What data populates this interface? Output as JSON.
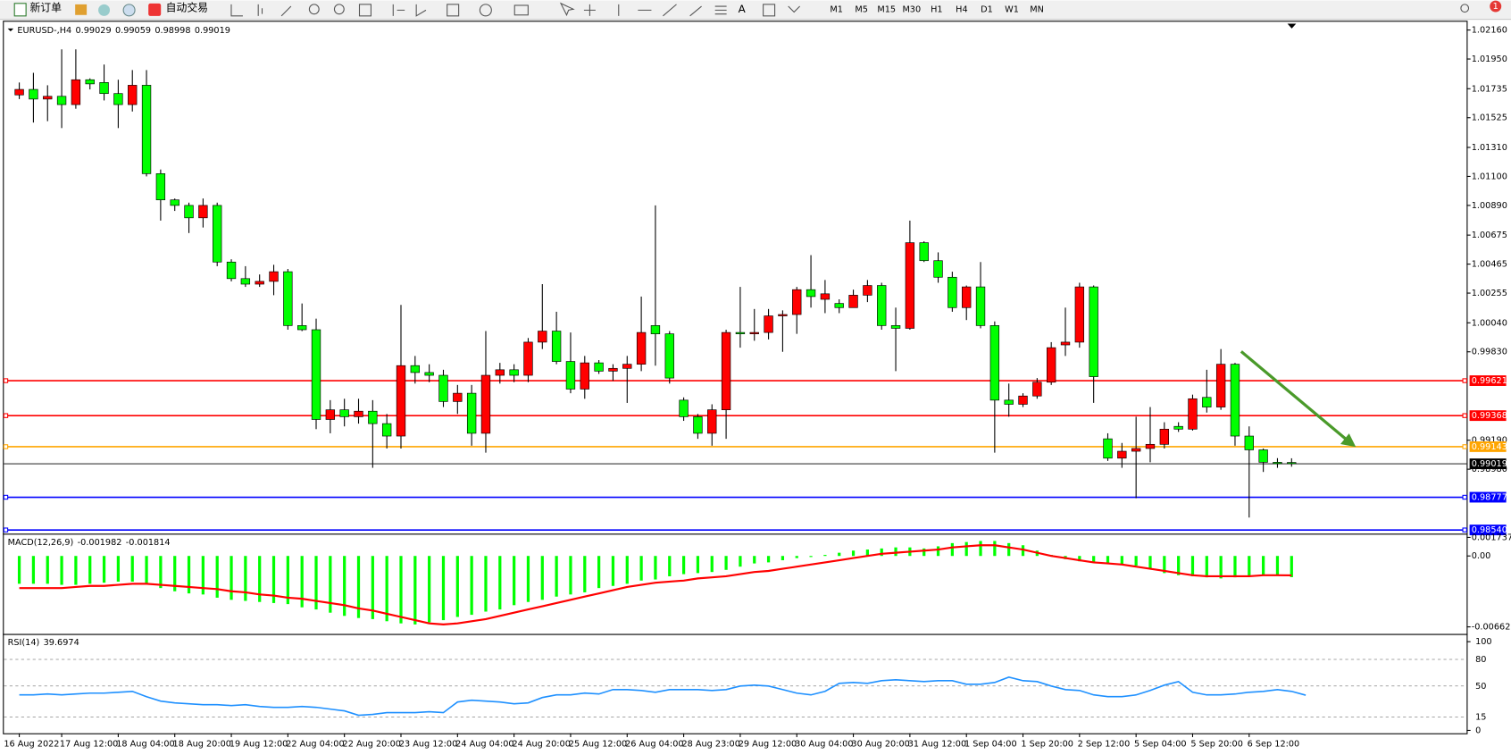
{
  "toolbar": {
    "new_order": "新订单",
    "auto_trading": "自动交易",
    "timeframes": [
      "M1",
      "M5",
      "M15",
      "M30",
      "H1",
      "H4",
      "D1",
      "W1",
      "MN"
    ],
    "notifications": "1"
  },
  "chart_data": [
    {
      "type": "candlestick",
      "title": "EURUSD-,H4",
      "categories": [
        "16 Aug 2022",
        null,
        null,
        "17 Aug 12:00",
        null,
        null,
        null,
        "18 Aug 04:00",
        null,
        null,
        null,
        "18 Aug 20:00",
        null,
        null,
        null,
        "19 Aug 12:00",
        null,
        null,
        null,
        "22 Aug 04:00",
        null,
        null,
        null,
        "22 Aug 20:00",
        null,
        null,
        null,
        "23 Aug 12:00",
        null,
        null,
        null,
        "24 Aug 04:00",
        null,
        null,
        null,
        "24 Aug 20:00",
        null,
        null,
        null,
        "25 Aug 12:00",
        null,
        null,
        null,
        "26 Aug 04:00",
        null,
        null,
        null,
        "28 Aug 23:00",
        null,
        null,
        null,
        "29 Aug 12:00",
        null,
        null,
        null,
        "30 Aug 04:00",
        null,
        null,
        null,
        "30 Aug 20:00",
        null,
        null,
        null,
        "31 Aug 12:00",
        null,
        null,
        null,
        "1 Sep 04:00",
        null,
        null,
        null,
        "1 Sep 20:00",
        null,
        null,
        null,
        "2 Sep 12:00",
        null,
        null,
        null,
        "5 Sep 04:00",
        null,
        null,
        null,
        "5 Sep 20:00",
        null,
        null,
        null,
        "6 Sep 12:00",
        null,
        null,
        null
      ],
      "open": [
        1.0169,
        1.0173,
        1.0166,
        1.0168,
        1.0162,
        1.018,
        1.0178,
        1.017,
        1.0162,
        1.0176,
        1.0112,
        1.0093,
        1.0089,
        1.008,
        1.0089,
        1.0048,
        1.0036,
        1.0032,
        1.0034,
        1.0041,
        1.0002,
        0.9999,
        0.9934,
        0.9941,
        0.9936,
        0.994,
        0.9931,
        0.9922,
        0.9973,
        0.9968,
        0.9966,
        0.9947,
        0.9953,
        0.9924,
        0.9966,
        0.997,
        0.9966,
        0.999,
        0.9998,
        0.9976,
        0.9956,
        0.9975,
        0.9969,
        0.9971,
        0.9974,
        1.0002,
        0.9996,
        0.9948,
        0.9936,
        0.9924,
        0.9941,
        0.9997,
        0.9996,
        0.9997,
        1.0009,
        1.001,
        1.0028,
        1.0021,
        1.0018,
        1.0015,
        1.0024,
        1.0031,
        1.0002,
        1.0,
        1.0062,
        1.0049,
        1.0037,
        1.0015,
        1.003,
        1.0002,
        0.9948,
        0.9945,
        0.9951,
        0.9961,
        0.9988,
        0.999,
        1.003,
        0.992,
        0.9906,
        0.9911,
        0.9913,
        0.9916,
        0.9929,
        0.9927,
        0.995,
        0.9943,
        0.9974,
        0.9922,
        0.9912,
        0.9903,
        0.99029
      ],
      "high": [
        1.0178,
        1.0185,
        1.0176,
        1.0202,
        1.0202,
        1.0181,
        1.0191,
        1.018,
        1.0187,
        1.0187,
        1.0115,
        1.0094,
        1.0091,
        1.0094,
        1.0091,
        1.005,
        1.0045,
        1.0039,
        1.0046,
        1.0043,
        1.0018,
        1.0007,
        0.9948,
        0.9949,
        0.9949,
        0.9948,
        0.9938,
        1.0017,
        0.998,
        0.9974,
        0.997,
        0.9959,
        0.9959,
        0.9998,
        0.9975,
        0.9974,
        0.9993,
        1.0032,
        1.0012,
        0.9997,
        0.998,
        0.9977,
        0.9974,
        0.998,
        1.0023,
        1.0089,
        0.9998,
        0.995,
        0.9938,
        0.9945,
        0.9999,
        1.003,
        1.0014,
        1.0014,
        1.0013,
        1.003,
        1.0053,
        1.0035,
        1.0021,
        1.0028,
        1.0035,
        1.0033,
        1.0015,
        1.0078,
        1.0063,
        1.0055,
        1.0041,
        1.0031,
        1.0048,
        1.0005,
        0.996,
        0.9953,
        0.9964,
        0.999,
        1.0015,
        1.0033,
        1.0031,
        0.9924,
        0.9917,
        0.9936,
        0.9943,
        0.9932,
        0.9932,
        0.9952,
        0.997,
        0.9985,
        0.9975,
        0.9929,
        0.9913,
        0.9906,
        0.99059
      ],
      "low": [
        1.0166,
        1.0149,
        1.015,
        1.0145,
        1.0159,
        1.0173,
        1.0165,
        1.0145,
        1.0157,
        1.011,
        1.0078,
        1.0085,
        1.0069,
        1.0073,
        1.0045,
        1.0034,
        1.003,
        1.003,
        1.0024,
        0.9999,
        0.9998,
        0.9927,
        0.9924,
        0.9929,
        0.9931,
        0.9899,
        0.9913,
        0.9913,
        0.996,
        0.9961,
        0.9943,
        0.9938,
        0.9915,
        0.991,
        0.996,
        0.9961,
        0.9961,
        0.9985,
        0.9974,
        0.9953,
        0.9949,
        0.9967,
        0.9962,
        0.9946,
        0.9969,
        0.9973,
        0.996,
        0.9933,
        0.992,
        0.9915,
        0.992,
        0.9986,
        0.9991,
        0.9992,
        0.9983,
        0.9996,
        1.0015,
        1.0011,
        1.0011,
        1.0018,
        1.0019,
        0.9999,
        0.9969,
        0.9999,
        1.0048,
        1.0033,
        1.0012,
        1.0006,
        1.0,
        0.991,
        0.9936,
        0.9943,
        0.9949,
        0.9959,
        0.998,
        0.9986,
        0.9946,
        0.9904,
        0.9899,
        0.9877,
        0.9903,
        0.9913,
        0.9925,
        0.9926,
        0.9939,
        0.9941,
        0.9915,
        0.9863,
        0.9896,
        0.9899,
        0.98998
      ],
      "close": [
        1.0173,
        1.0166,
        1.0168,
        1.0162,
        1.018,
        1.0177,
        1.017,
        1.0162,
        1.0176,
        1.0112,
        1.0093,
        1.0089,
        1.008,
        1.0089,
        1.0048,
        1.0036,
        1.0032,
        1.0034,
        1.0041,
        1.0002,
        0.9999,
        0.9934,
        0.9941,
        0.9936,
        0.994,
        0.9931,
        0.9922,
        0.9973,
        0.9968,
        0.9966,
        0.9947,
        0.9953,
        0.9924,
        0.9966,
        0.997,
        0.9966,
        0.999,
        0.9998,
        0.9976,
        0.9956,
        0.9975,
        0.9969,
        0.9971,
        0.9974,
        0.9997,
        0.9996,
        0.9964,
        0.9936,
        0.9924,
        0.9941,
        0.9997,
        0.9996,
        0.9997,
        1.0009,
        1.001,
        1.0028,
        1.0023,
        1.0025,
        1.0015,
        1.0024,
        1.0031,
        1.0002,
        1.0,
        1.0062,
        1.0049,
        1.0037,
        1.0015,
        1.003,
        1.0002,
        0.9948,
        0.9945,
        0.9951,
        0.9961,
        0.9986,
        0.999,
        1.003,
        0.9965,
        0.9906,
        0.9911,
        0.9913,
        0.9916,
        0.9927,
        0.9927,
        0.9949,
        0.9943,
        0.9974,
        0.9922,
        0.9912,
        0.9903,
        0.9902,
        0.99019
      ],
      "up_color": "#ff0000",
      "down_color": "#00ff00",
      "ylim": [
        0.9852,
        1.0222
      ],
      "yticks": [
        {
          "value": 1.0216,
          "label": "1.02160"
        },
        {
          "value": 1.0195,
          "label": "1.01950"
        },
        1.01735,
        1.01525,
        {
          "value": 1.0131,
          "label": "1.01310"
        },
        {
          "value": 1.011,
          "label": "1.01100"
        },
        {
          "value": 1.0089,
          "label": "1.00890"
        },
        1.00675,
        1.00465,
        1.00255,
        {
          "value": 1.0004,
          "label": "1.00040"
        },
        {
          "value": 0.9983,
          "label": "0.99830"
        },
        {
          "value": 0.9919,
          "label": "0.99190"
        },
        {
          "value": 0.9898,
          "label": "0.98980"
        }
      ],
      "levels": [
        {
          "value": 0.99621,
          "color": "#ff0000"
        },
        {
          "value": 0.99368,
          "color": "#ff0000"
        },
        {
          "value": 0.99143,
          "color": "#ffa500"
        },
        {
          "value": 0.98777,
          "color": "#0000ff"
        },
        {
          "value": 0.9854,
          "label": "0.98540",
          "color": "#0000ff"
        }
      ]
    },
    {
      "type": "macd",
      "title": "MACD(12,26,9)",
      "histogram": [
        -0.0026,
        -0.0026,
        -0.0026,
        -0.0027,
        -0.0027,
        -0.0026,
        -0.0025,
        -0.0024,
        -0.0024,
        -0.0026,
        -0.003,
        -0.0033,
        -0.0035,
        -0.0036,
        -0.0039,
        -0.0041,
        -0.0042,
        -0.0043,
        -0.0044,
        -0.0045,
        -0.0048,
        -0.005,
        -0.0053,
        -0.0056,
        -0.0058,
        -0.0059,
        -0.0061,
        -0.0063,
        -0.0064,
        -0.0062,
        -0.006,
        -0.0057,
        -0.0055,
        -0.0052,
        -0.005,
        -0.0046,
        -0.0043,
        -0.0041,
        -0.0038,
        -0.0036,
        -0.0034,
        -0.003,
        -0.0028,
        -0.0026,
        -0.0023,
        -0.0022,
        -0.0019,
        -0.0017,
        -0.0016,
        -0.0015,
        -0.0013,
        -0.001,
        -0.0007,
        -0.0006,
        -0.0004,
        -0.0002,
        -0.0001,
        0.0001,
        0.0003,
        0.0005,
        0.0006,
        0.0007,
        0.0008,
        0.0008,
        0.0007,
        0.0009,
        0.0012,
        0.0013,
        0.0014,
        0.0014,
        0.0012,
        0.001,
        0.0005,
        0.0001,
        -0.0003,
        -0.0005,
        -0.0006,
        -0.0007,
        -0.0008,
        -0.0009,
        -0.0012,
        -0.0016,
        -0.0018,
        -0.0019,
        -0.002,
        -0.0021,
        -0.002,
        -0.0019,
        -0.0018,
        -0.0018,
        -0.001982
      ],
      "histogram_color": "#00ff00",
      "signal": [
        -0.003,
        -0.003,
        -0.003,
        -0.003,
        -0.0029,
        -0.0028,
        -0.0028,
        -0.0027,
        -0.0026,
        -0.0026,
        -0.0027,
        -0.0028,
        -0.0029,
        -0.003,
        -0.0031,
        -0.0033,
        -0.0034,
        -0.0036,
        -0.0037,
        -0.0039,
        -0.004,
        -0.0042,
        -0.0044,
        -0.0046,
        -0.0049,
        -0.0051,
        -0.0054,
        -0.0057,
        -0.006,
        -0.0063,
        -0.0064,
        -0.0063,
        -0.0061,
        -0.0059,
        -0.0056,
        -0.0053,
        -0.005,
        -0.0047,
        -0.0044,
        -0.0041,
        -0.0038,
        -0.0035,
        -0.0032,
        -0.0029,
        -0.0027,
        -0.0025,
        -0.0024,
        -0.0023,
        -0.0021,
        -0.002,
        -0.0019,
        -0.0017,
        -0.0015,
        -0.0014,
        -0.0012,
        -0.001,
        -0.0008,
        -0.0006,
        -0.0004,
        -0.0002,
        0.0,
        0.0002,
        0.0003,
        0.0004,
        0.0005,
        0.0006,
        0.0008,
        0.0009,
        0.001,
        0.001,
        0.0008,
        0.0006,
        0.0003,
        0.0,
        -0.0002,
        -0.0004,
        -0.0006,
        -0.0007,
        -0.0008,
        -0.001,
        -0.0012,
        -0.0014,
        -0.0016,
        -0.0018,
        -0.0019,
        -0.0019,
        -0.0019,
        -0.0019,
        -0.0018,
        -0.0018,
        -0.001814
      ],
      "signal_color": "#ff0000",
      "ylim": [
        -0.0072,
        0.0019
      ],
      "yticks": [
        0.001737,
        {
          "value": 0,
          "label": "0.00"
        },
        -0.006628
      ]
    },
    {
      "type": "line",
      "title": "RSI(14)",
      "values": [
        40,
        40,
        41,
        40,
        41,
        42,
        42,
        43,
        44,
        38,
        33,
        31,
        30,
        29,
        29,
        28,
        29,
        27,
        26,
        26,
        27,
        26,
        24,
        22,
        17,
        18,
        20,
        20,
        20,
        21,
        20,
        32,
        34,
        33,
        32,
        30,
        31,
        37,
        40,
        40,
        42,
        41,
        46,
        46,
        45,
        43,
        46,
        46,
        46,
        45,
        46,
        50,
        51,
        50,
        46,
        42,
        40,
        44,
        53,
        54,
        53,
        56,
        57,
        56,
        55,
        56,
        56,
        52,
        52,
        54,
        60,
        56,
        55,
        50,
        46,
        45,
        40,
        38,
        38,
        40,
        45,
        51,
        55,
        43,
        40,
        40,
        41,
        43,
        44,
        46,
        44,
        39.6974
      ],
      "color": "#1e90ff",
      "ylim": [
        0,
        100
      ],
      "yticks": [
        100,
        80,
        50,
        15,
        0
      ]
    }
  ]
}
